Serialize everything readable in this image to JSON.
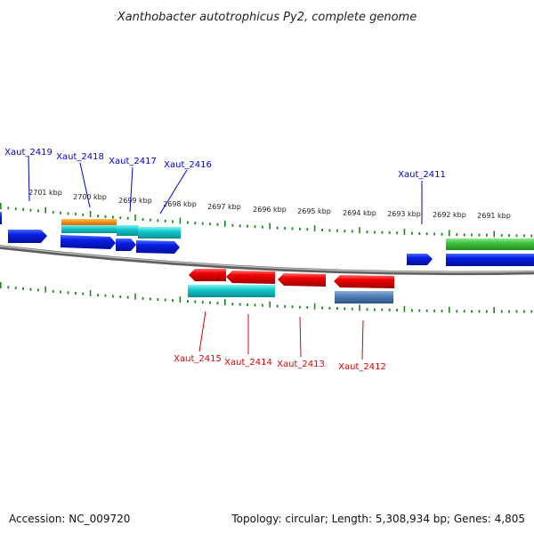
{
  "title": "Xanthobacter autotrophicus Py2, complete genome",
  "footer": {
    "accession": "Accession: NC_009720",
    "topology": "Topology: circular; Length: 5,308,934 bp; Genes: 4,805"
  },
  "colors": {
    "forward_label": "#0000cc",
    "reverse_label": "#dd0000",
    "tick": "#1a8a1a",
    "backbone": "#8a8a8a"
  },
  "kbp_labels": [
    "2701 kbp",
    "2700 kbp",
    "2699 kbp",
    "2698 kbp",
    "2697 kbp",
    "2696 kbp",
    "2695 kbp",
    "2694 kbp",
    "2693 kbp",
    "2692 kbp",
    "2691 kbp"
  ],
  "forward_genes": [
    {
      "name": "Xaut_2419"
    },
    {
      "name": "Xaut_2418"
    },
    {
      "name": "Xaut_2417"
    },
    {
      "name": "Xaut_2416"
    },
    {
      "name": "Xaut_2411"
    }
  ],
  "reverse_genes": [
    {
      "name": "Xaut_2415"
    },
    {
      "name": "Xaut_2414"
    },
    {
      "name": "Xaut_2413"
    },
    {
      "name": "Xaut_2412"
    }
  ]
}
